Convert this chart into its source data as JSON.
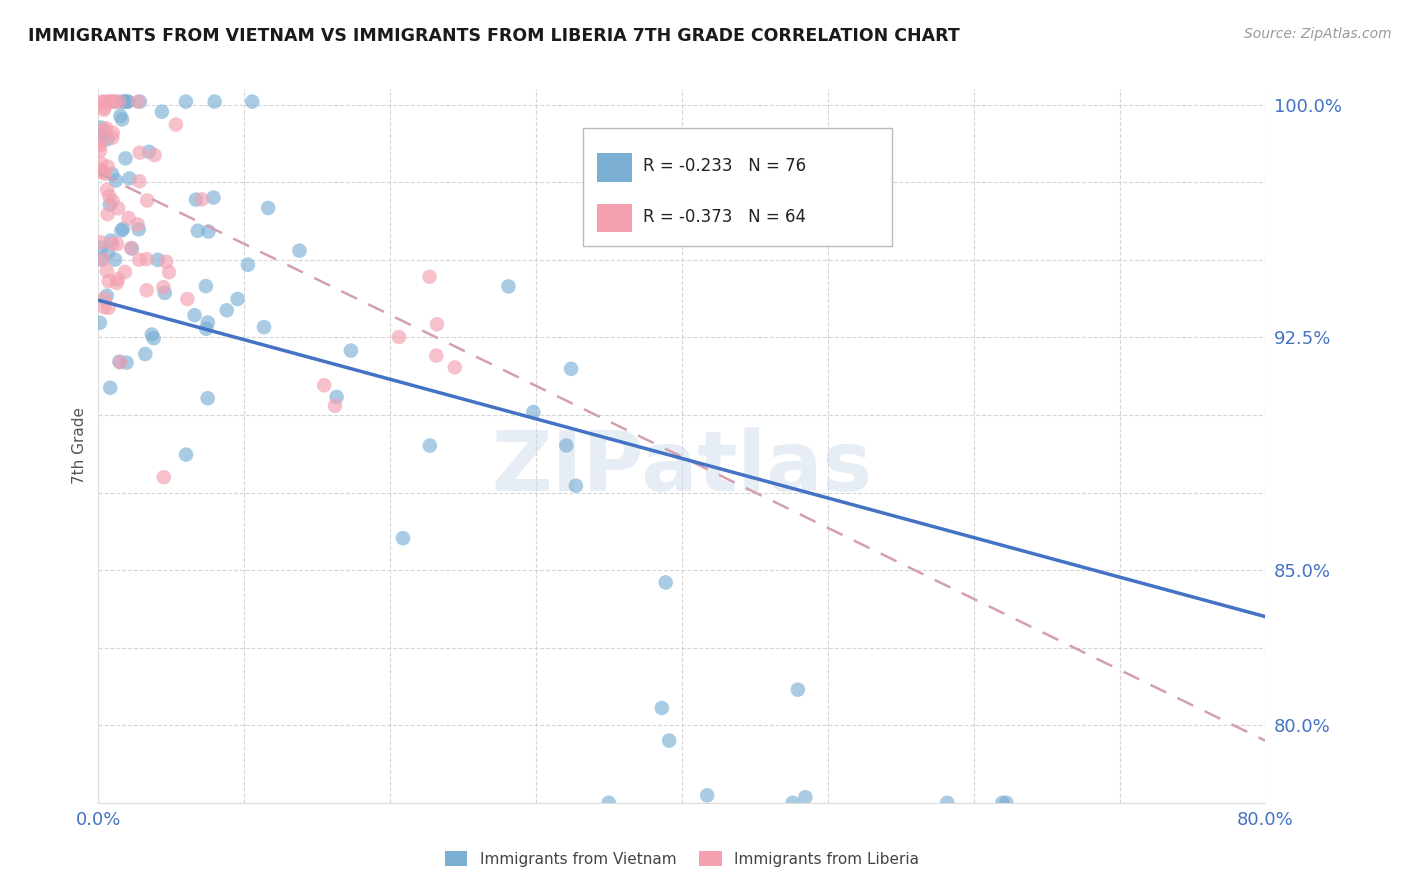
{
  "title": "IMMIGRANTS FROM VIETNAM VS IMMIGRANTS FROM LIBERIA 7TH GRADE CORRELATION CHART",
  "source": "Source: ZipAtlas.com",
  "ylabel": "7th Grade",
  "xmin": 0.0,
  "xmax": 0.8,
  "ymin": 0.775,
  "ymax": 1.005,
  "ytick_vals": [
    0.775,
    0.8,
    0.825,
    0.85,
    0.875,
    0.9,
    0.925,
    0.95,
    0.975,
    1.0
  ],
  "ytick_labels": [
    "",
    "80.0%",
    "",
    "85.0%",
    "",
    "",
    "92.5%",
    "",
    "",
    "100.0%"
  ],
  "xtick_vals": [
    0.0,
    0.1,
    0.2,
    0.3,
    0.4,
    0.5,
    0.6,
    0.7,
    0.8
  ],
  "xtick_labels": [
    "0.0%",
    "",
    "",
    "",
    "",
    "",
    "",
    "",
    "80.0%"
  ],
  "grid_color": "#cccccc",
  "background_color": "#ffffff",
  "vietnam_color": "#7bafd4",
  "liberia_color": "#f4a0b0",
  "trend_vietnam_color": "#4472c4",
  "trend_liberia_color": "#d4a0b0",
  "legend_r_vietnam": "R = -0.233",
  "legend_n_vietnam": "N = 76",
  "legend_r_liberia": "R = -0.373",
  "legend_n_liberia": "N = 64",
  "watermark": "ZIPatlas",
  "tick_color": "#4472c4",
  "trend_viet_x0": 0.0,
  "trend_viet_y0": 0.937,
  "trend_viet_x1": 0.8,
  "trend_viet_y1": 0.835,
  "trend_lib_x0": 0.0,
  "trend_lib_y0": 0.978,
  "trend_lib_x1": 0.8,
  "trend_lib_y1": 0.795
}
